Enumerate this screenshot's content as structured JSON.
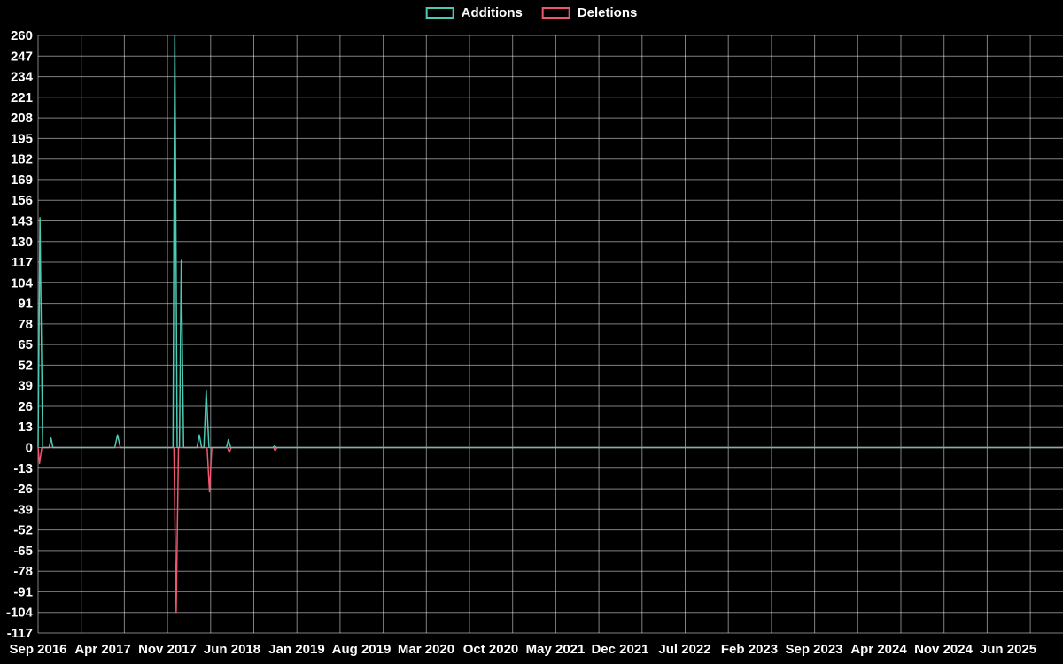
{
  "legend": {
    "items": [
      {
        "label": "Additions",
        "color": "#4ec9b4"
      },
      {
        "label": "Deletions",
        "color": "#ef5670"
      }
    ]
  },
  "chart_data": {
    "type": "line",
    "title": "",
    "xlabel": "",
    "ylabel": "",
    "grid": true,
    "legend_position": "top-center",
    "background_color": "#000000",
    "grid_color": "rgba(255,255,255,0.5)",
    "text_color": "#ffffff",
    "ylim": [
      -117,
      260
    ],
    "y_ticks": [
      260,
      247,
      234,
      221,
      208,
      195,
      182,
      169,
      156,
      143,
      130,
      117,
      104,
      91,
      78,
      65,
      52,
      39,
      26,
      13,
      0,
      -13,
      -26,
      -39,
      -52,
      -65,
      -78,
      -91,
      -104,
      -117
    ],
    "x_tick_labels": [
      "Sep 2016",
      "Apr 2017",
      "Nov 2017",
      "Jun 2018",
      "Jan 2019",
      "Aug 2019",
      "Mar 2020",
      "Oct 2020",
      "May 2021",
      "Dec 2021",
      "Jul 2022",
      "Feb 2023",
      "Sep 2023",
      "Apr 2024",
      "Nov 2024",
      "Jun 2025"
    ],
    "x_tick_months": [
      0,
      7,
      14,
      21,
      28,
      35,
      42,
      49,
      56,
      63,
      70,
      77,
      84,
      91,
      98,
      105
    ],
    "xlim_months": [
      0,
      111
    ],
    "series": [
      {
        "name": "Additions",
        "color": "#4ec9b4",
        "points": [
          [
            0,
            0
          ],
          [
            0.2,
            145
          ],
          [
            0.5,
            0
          ],
          [
            1.2,
            0
          ],
          [
            1.4,
            6
          ],
          [
            1.6,
            0
          ],
          [
            8.3,
            0
          ],
          [
            8.6,
            8
          ],
          [
            8.9,
            0
          ],
          [
            14.6,
            0
          ],
          [
            14.8,
            262
          ],
          [
            15.05,
            0
          ],
          [
            15.3,
            0
          ],
          [
            15.5,
            118
          ],
          [
            15.75,
            0
          ],
          [
            17.2,
            0
          ],
          [
            17.45,
            8
          ],
          [
            17.7,
            0
          ],
          [
            17.95,
            0
          ],
          [
            18.2,
            36
          ],
          [
            18.5,
            0
          ],
          [
            20.4,
            0
          ],
          [
            20.6,
            5
          ],
          [
            20.85,
            0
          ],
          [
            25.4,
            0
          ],
          [
            25.6,
            1
          ],
          [
            25.8,
            0
          ],
          [
            111,
            0
          ]
        ]
      },
      {
        "name": "Deletions",
        "color": "#ef5670",
        "points": [
          [
            0,
            0
          ],
          [
            0.15,
            -10
          ],
          [
            0.4,
            0
          ],
          [
            14.7,
            0
          ],
          [
            14.95,
            -104
          ],
          [
            15.2,
            0
          ],
          [
            18.3,
            0
          ],
          [
            18.55,
            -28
          ],
          [
            18.8,
            0
          ],
          [
            20.5,
            0
          ],
          [
            20.7,
            -3
          ],
          [
            20.9,
            0
          ],
          [
            25.5,
            0
          ],
          [
            25.65,
            -2
          ],
          [
            25.85,
            0
          ],
          [
            111,
            0
          ]
        ]
      }
    ]
  }
}
